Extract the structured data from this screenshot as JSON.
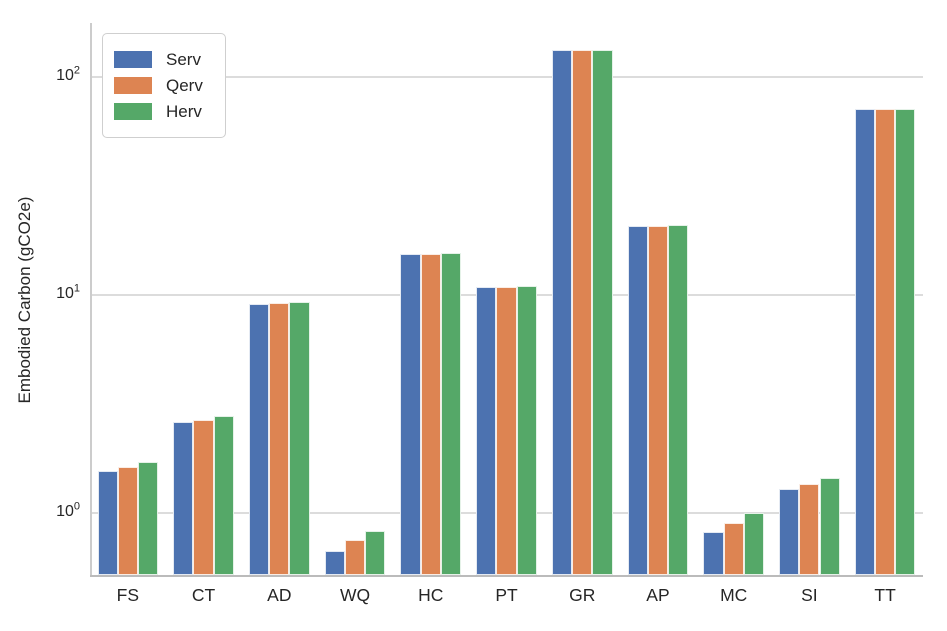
{
  "chart_data": {
    "type": "bar",
    "title": "",
    "ylabel": "Embodied Carbon (gCO2e)",
    "xlabel": "",
    "yscale": "log",
    "ylim": [
      0.52,
      176
    ],
    "yticks": [
      1,
      10,
      100
    ],
    "grid": true,
    "legend_position": "upper left",
    "categories": [
      "FS",
      "CT",
      "AD",
      "WQ",
      "HC",
      "PT",
      "GR",
      "AP",
      "MC",
      "SI",
      "TT"
    ],
    "series": [
      {
        "name": "Serv",
        "color": "#4C72B0",
        "values": [
          1.55,
          2.62,
          9.1,
          0.67,
          15.3,
          10.9,
          132,
          20.7,
          0.82,
          1.29,
          71
        ]
      },
      {
        "name": "Qerv",
        "color": "#DD8452",
        "values": [
          1.63,
          2.68,
          9.2,
          0.75,
          15.4,
          10.9,
          132,
          20.7,
          0.9,
          1.36,
          71
        ]
      },
      {
        "name": "Herv",
        "color": "#55A868",
        "values": [
          1.72,
          2.77,
          9.3,
          0.83,
          15.6,
          11.0,
          132,
          20.9,
          1.0,
          1.45,
          71
        ]
      }
    ]
  },
  "colors": {
    "grid": "#dcdcdc",
    "spine_left": "#cccccc",
    "spine_bottom": "#bbbbbb",
    "text": "#262626",
    "background": "#ffffff"
  }
}
